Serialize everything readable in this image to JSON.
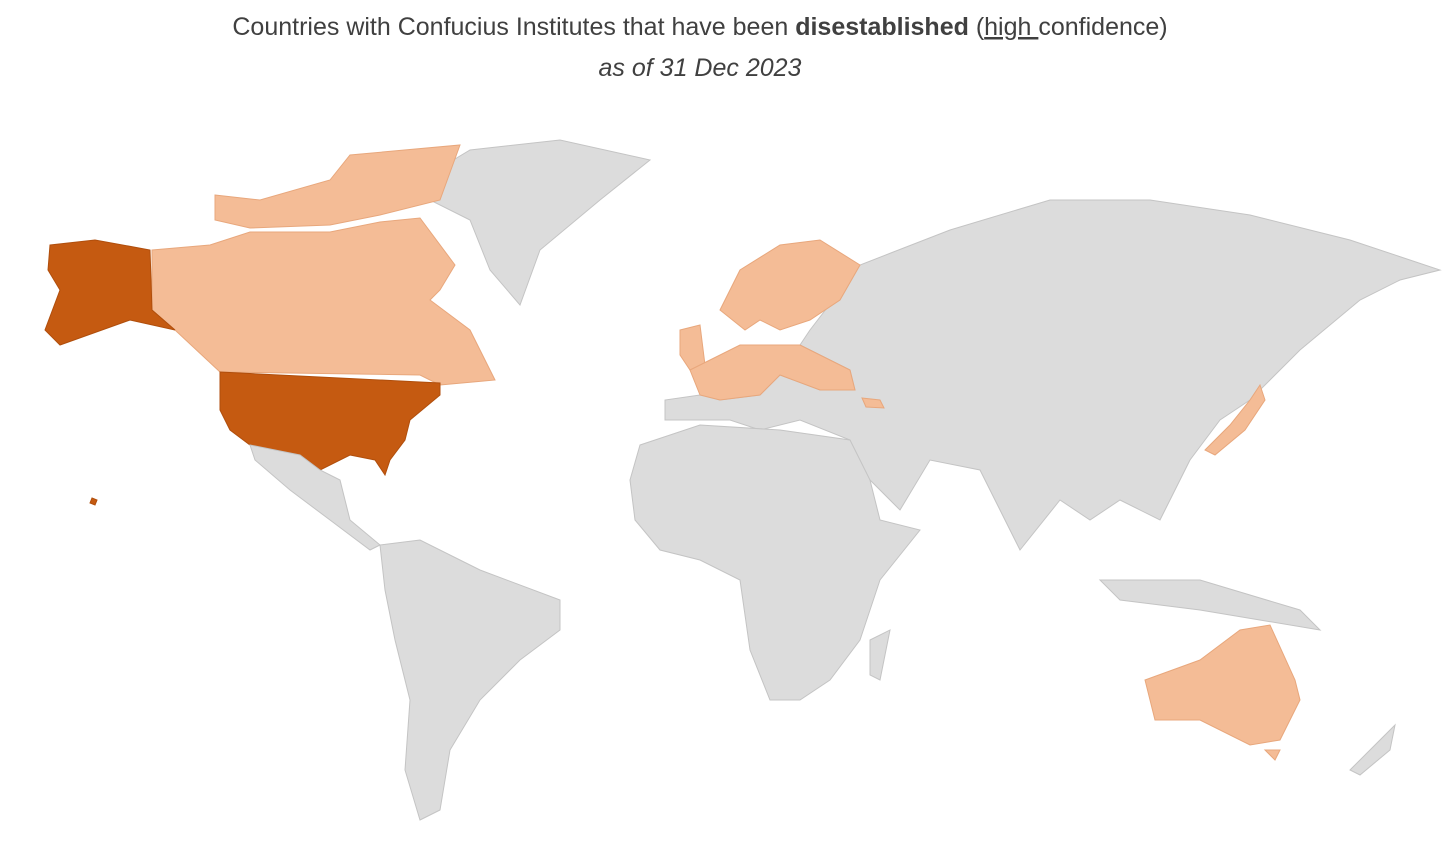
{
  "header": {
    "title": {
      "parts": [
        "Countries with Confucius Institutes that have been ",
        "disestablished",
        " (",
        "high ",
        "confidence)"
      ]
    },
    "subtitle": "as of 31 Dec 2023"
  }
}
